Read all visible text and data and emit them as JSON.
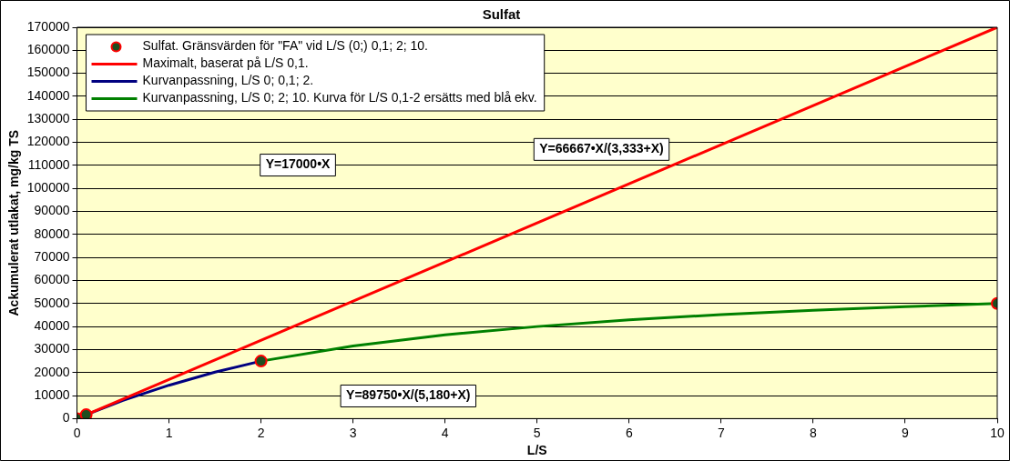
{
  "chart_data": {
    "type": "line",
    "title": "Sulfat",
    "xlabel": "L/S",
    "ylabel": "Ackumulerat utlakat, mg/kg TS",
    "xlim": [
      0,
      10
    ],
    "xticks": [
      0,
      1,
      2,
      3,
      4,
      5,
      6,
      7,
      8,
      9,
      10
    ],
    "ylim": [
      0,
      170000
    ],
    "yticks": [
      0,
      10000,
      20000,
      30000,
      40000,
      50000,
      60000,
      70000,
      80000,
      90000,
      100000,
      110000,
      120000,
      130000,
      140000,
      150000,
      160000,
      170000
    ],
    "grid": "y",
    "legend": "top left",
    "line_style": "solid",
    "series": [
      {
        "type": "scatter",
        "marker": "circle",
        "name": "Sulfat. Gränsvärden för \"FA\" vid L/S (0;) 0,1; 2; 10.",
        "color": "#ff0000",
        "x": [
          0,
          0.1,
          2,
          10
        ],
        "values": [
          0,
          1700,
          25000,
          50000
        ]
      },
      {
        "name": "Maximalt, baserat på L/S 0,1.",
        "color": "#ff0000",
        "x": [
          0,
          10
        ],
        "values": [
          0,
          170000
        ]
      },
      {
        "name": "Kurvanpassning, L/S 0; 0,1; 2.",
        "color": "#000080",
        "x": [
          0,
          0.1,
          0.5,
          1,
          1.5,
          2
        ],
        "values": [
          0,
          1700,
          7900,
          14500,
          20200,
          25000
        ]
      },
      {
        "name": "Kurvanpassning, L/S 0; 2; 10. Kurva för L/S 0,1-2 ersätts med blå ekv.",
        "color": "#008000",
        "x": [
          2,
          3,
          4,
          5,
          6,
          7,
          8,
          9,
          10
        ],
        "values": [
          25000,
          31600,
          36400,
          40000,
          42900,
          45200,
          47100,
          48600,
          50000
        ]
      }
    ],
    "annotations": [
      "Y=17000•X",
      "Y=66667•X/(3,333+X)",
      "Y=89750•X/(5,180+X)"
    ]
  }
}
